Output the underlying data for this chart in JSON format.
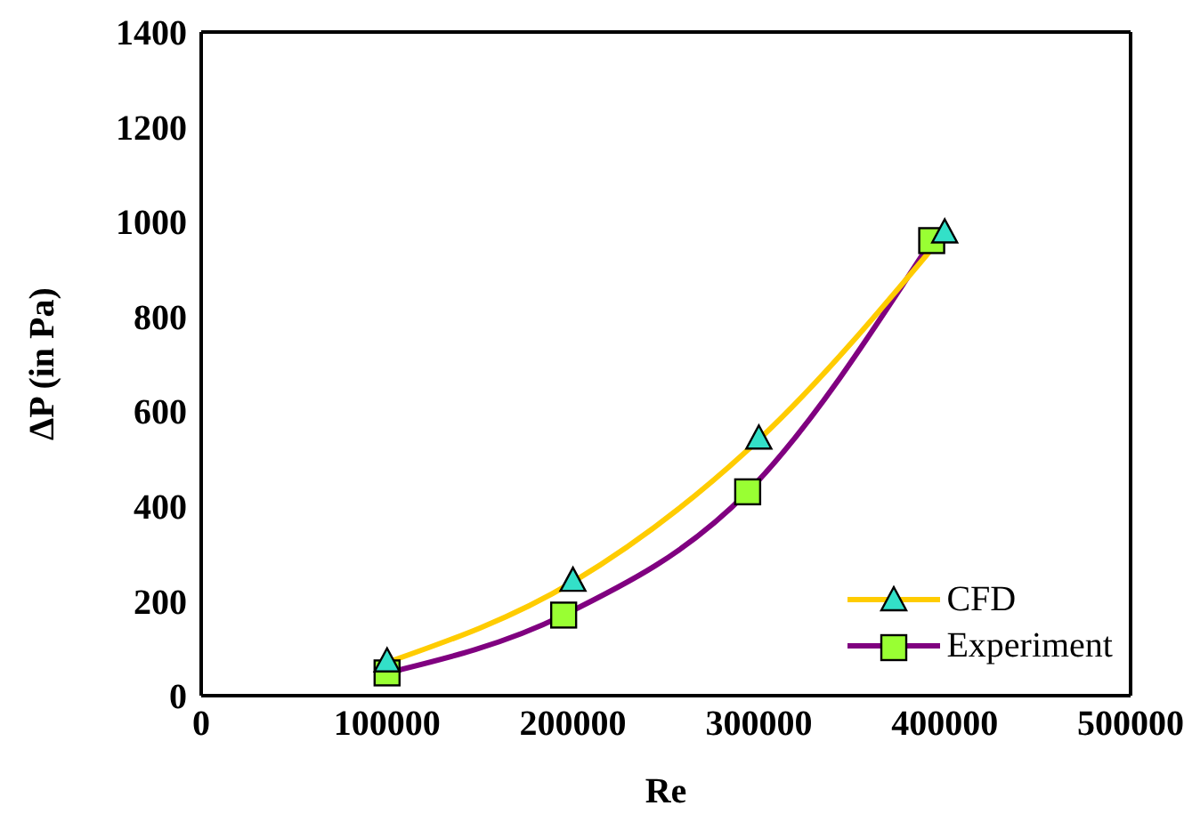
{
  "chart_data": {
    "type": "line",
    "xlabel": "Re",
    "ylabel": "ΔP (in Pa)",
    "series": [
      {
        "name": "CFD",
        "color": "#ffcc00",
        "marker": "triangle",
        "x": [
          100000,
          200000,
          300000,
          400000
        ],
        "values": [
          70,
          240,
          540,
          975
        ]
      },
      {
        "name": "Experiment",
        "color": "#800080",
        "marker": "square",
        "x": [
          100000,
          195000,
          294000,
          393000
        ],
        "values": [
          48,
          170,
          430,
          960
        ]
      }
    ],
    "xlim": [
      0,
      500000
    ],
    "xticks": [
      0,
      100000,
      200000,
      300000,
      400000,
      500000
    ],
    "ylim": [
      0,
      1400
    ],
    "yticks": [
      0,
      200,
      400,
      600,
      800,
      1000,
      1200,
      1400
    ],
    "grid": false,
    "legend": "bottom right"
  }
}
